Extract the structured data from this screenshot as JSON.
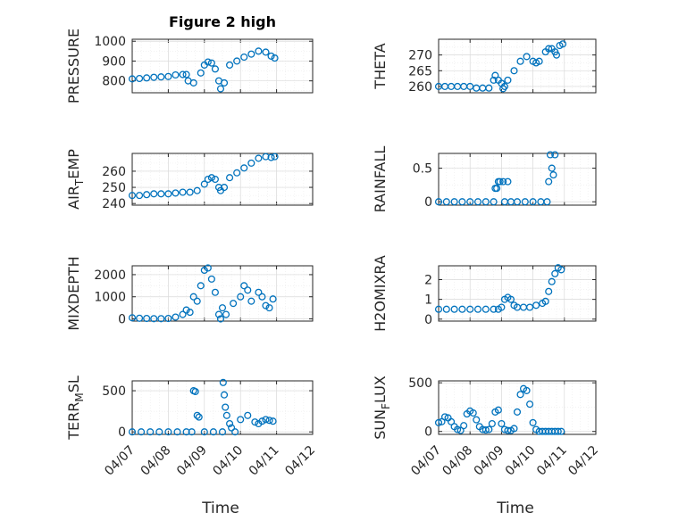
{
  "chart_data": [
    {
      "type": "scatter",
      "title": "Figure 2 high",
      "ylabel": "PRESSURE",
      "xlabel": "",
      "xlim": [
        "04/07",
        "04/12"
      ],
      "ylim": [
        740,
        1010
      ],
      "yticks": [
        800,
        900,
        1000
      ],
      "ytick_labels": [
        "800",
        "900",
        "1000"
      ],
      "xtick_labels": [],
      "grid": true,
      "series": [
        {
          "x": [
            0,
            0.2,
            0.4,
            0.6,
            0.8,
            1.0,
            1.2,
            1.4,
            1.5,
            1.55,
            1.7,
            1.9,
            2.0,
            2.1,
            2.2,
            2.3,
            2.4,
            2.45,
            2.55,
            2.7,
            2.9,
            3.1,
            3.3,
            3.5,
            3.7,
            3.85,
            3.95
          ],
          "y": [
            810,
            812,
            815,
            818,
            820,
            822,
            830,
            832,
            832,
            800,
            790,
            840,
            880,
            895,
            890,
            860,
            800,
            760,
            790,
            880,
            900,
            920,
            935,
            950,
            945,
            925,
            915
          ]
        }
      ]
    },
    {
      "type": "scatter",
      "title": "",
      "ylabel": "THETA",
      "xlabel": "",
      "xlim": [
        "04/07",
        "04/12"
      ],
      "ylim": [
        258,
        275
      ],
      "yticks": [
        260,
        265,
        270
      ],
      "ytick_labels": [
        "260",
        "265",
        "270"
      ],
      "xtick_labels": [],
      "grid": true,
      "series": [
        {
          "x": [
            0,
            0.2,
            0.4,
            0.6,
            0.8,
            1.0,
            1.2,
            1.4,
            1.6,
            1.75,
            1.8,
            1.9,
            2.0,
            2.05,
            2.1,
            2.2,
            2.4,
            2.6,
            2.8,
            3.0,
            3.1,
            3.2,
            3.4,
            3.5,
            3.6,
            3.7,
            3.75,
            3.85,
            3.95
          ],
          "y": [
            260,
            260,
            260,
            260,
            260,
            260,
            259.5,
            259.5,
            259.5,
            262,
            263.5,
            262,
            261,
            259.3,
            260,
            262,
            265,
            268,
            269.5,
            268,
            267.5,
            268,
            271,
            272,
            272,
            271,
            270,
            273,
            273.5
          ]
        }
      ]
    },
    {
      "type": "scatter",
      "title": "",
      "ylabel": "AIR_TEMP",
      "xlabel": "",
      "xlim": [
        "04/07",
        "04/12"
      ],
      "ylim": [
        239,
        271
      ],
      "yticks": [
        240,
        250,
        260
      ],
      "ytick_labels": [
        "240",
        "250",
        "260"
      ],
      "xtick_labels": [],
      "grid": true,
      "series": [
        {
          "x": [
            0,
            0.2,
            0.4,
            0.6,
            0.8,
            1.0,
            1.2,
            1.4,
            1.6,
            1.8,
            2.0,
            2.1,
            2.2,
            2.3,
            2.4,
            2.45,
            2.55,
            2.7,
            2.9,
            3.1,
            3.3,
            3.5,
            3.7,
            3.85,
            3.95
          ],
          "y": [
            245,
            245,
            245.5,
            246,
            246,
            246,
            246.5,
            247,
            247,
            248,
            252,
            255,
            256,
            255,
            250,
            248,
            250,
            256,
            259,
            262,
            265,
            268,
            269,
            268.5,
            269
          ]
        }
      ]
    },
    {
      "type": "scatter",
      "title": "",
      "ylabel": "RAINFALL",
      "xlabel": "",
      "xlim": [
        "04/07",
        "04/12"
      ],
      "ylim": [
        -0.05,
        0.72
      ],
      "yticks": [
        0,
        0.5
      ],
      "ytick_labels": [
        "0",
        "0.5"
      ],
      "xtick_labels": [],
      "grid": true,
      "series": [
        {
          "x": [
            0,
            0.25,
            0.5,
            0.75,
            1.0,
            1.25,
            1.5,
            1.75,
            1.8,
            1.85,
            1.9,
            1.95,
            2.05,
            2.1,
            2.2,
            2.3,
            2.5,
            2.75,
            3.0,
            3.25,
            3.45,
            3.5,
            3.55,
            3.6,
            3.65,
            3.7
          ],
          "y": [
            0,
            0,
            0,
            0,
            0,
            0,
            0,
            0,
            0.2,
            0.2,
            0.3,
            0.3,
            0.3,
            0,
            0.3,
            0,
            0,
            0,
            0,
            0,
            0,
            0.3,
            0.7,
            0.5,
            0.4,
            0.7
          ]
        }
      ]
    },
    {
      "type": "scatter",
      "title": "",
      "ylabel": "MIXDEPTH",
      "xlabel": "",
      "xlim": [
        "04/07",
        "04/12"
      ],
      "ylim": [
        -100,
        2400
      ],
      "yticks": [
        0,
        1000,
        2000
      ],
      "ytick_labels": [
        "0",
        "1000",
        "2000"
      ],
      "xtick_labels": [],
      "grid": true,
      "series": [
        {
          "x": [
            0,
            0.2,
            0.4,
            0.6,
            0.8,
            1.0,
            1.2,
            1.4,
            1.5,
            1.6,
            1.7,
            1.8,
            1.9,
            2.0,
            2.1,
            2.2,
            2.3,
            2.4,
            2.45,
            2.5,
            2.6,
            2.8,
            3.0,
            3.1,
            3.2,
            3.3,
            3.5,
            3.6,
            3.7,
            3.8,
            3.9
          ],
          "y": [
            50,
            30,
            20,
            10,
            10,
            20,
            80,
            200,
            400,
            300,
            1000,
            800,
            1500,
            2200,
            2300,
            1800,
            1200,
            200,
            0,
            500,
            200,
            700,
            1000,
            1500,
            1300,
            800,
            1200,
            1000,
            600,
            500,
            900
          ]
        }
      ]
    },
    {
      "type": "scatter",
      "title": "",
      "ylabel": "H2OMIXRA",
      "xlabel": "",
      "xlim": [
        "04/07",
        "04/12"
      ],
      "ylim": [
        -0.1,
        2.7
      ],
      "yticks": [
        0,
        1,
        2
      ],
      "ytick_labels": [
        "0",
        "1",
        "2"
      ],
      "xtick_labels": [],
      "grid": true,
      "series": [
        {
          "x": [
            0,
            0.25,
            0.5,
            0.75,
            1.0,
            1.25,
            1.5,
            1.75,
            1.9,
            2.0,
            2.1,
            2.2,
            2.3,
            2.4,
            2.5,
            2.7,
            2.9,
            3.1,
            3.3,
            3.4,
            3.5,
            3.6,
            3.7,
            3.8,
            3.9
          ],
          "y": [
            0.5,
            0.5,
            0.5,
            0.5,
            0.5,
            0.5,
            0.5,
            0.5,
            0.5,
            0.6,
            1.0,
            1.1,
            1.0,
            0.7,
            0.6,
            0.6,
            0.6,
            0.7,
            0.8,
            0.9,
            1.4,
            1.9,
            2.3,
            2.6,
            2.5
          ]
        }
      ]
    },
    {
      "type": "scatter",
      "title": "",
      "ylabel": "TERR_MSL",
      "xlabel": "",
      "xlim": [
        "04/07",
        "04/12"
      ],
      "ylim": [
        -30,
        620
      ],
      "yticks": [
        0,
        500
      ],
      "ytick_labels": [
        "0",
        "500"
      ],
      "xtick_labels": [
        "04/07",
        "04/08",
        "04/09",
        "04/10",
        "04/11",
        "04/12"
      ],
      "grid": true,
      "series": [
        {
          "x": [
            0,
            0.25,
            0.5,
            0.75,
            1.0,
            1.25,
            1.5,
            1.65,
            1.7,
            1.75,
            1.8,
            1.85,
            2.0,
            2.25,
            2.5,
            2.52,
            2.55,
            2.58,
            2.62,
            2.7,
            2.75,
            2.85,
            3.0,
            3.2,
            3.4,
            3.5,
            3.6,
            3.7,
            3.8,
            3.9
          ],
          "y": [
            0,
            0,
            0,
            0,
            0,
            0,
            0,
            0,
            500,
            490,
            200,
            180,
            0,
            0,
            0,
            600,
            450,
            300,
            200,
            100,
            50,
            0,
            150,
            200,
            120,
            100,
            130,
            150,
            140,
            130
          ]
        }
      ]
    },
    {
      "type": "scatter",
      "title": "",
      "ylabel": "SUN_FLUX",
      "xlabel": "",
      "xlim": [
        "04/07",
        "04/12"
      ],
      "ylim": [
        -30,
        520
      ],
      "yticks": [
        0,
        500
      ],
      "ytick_labels": [
        "0",
        "500"
      ],
      "xtick_labels": [
        "04/07",
        "04/08",
        "04/09",
        "04/10",
        "04/11",
        "04/12"
      ],
      "grid": true,
      "series": [
        {
          "x": [
            0,
            0.1,
            0.2,
            0.3,
            0.4,
            0.5,
            0.6,
            0.7,
            0.8,
            0.9,
            1.0,
            1.1,
            1.2,
            1.3,
            1.4,
            1.5,
            1.6,
            1.7,
            1.8,
            1.9,
            2.0,
            2.1,
            2.2,
            2.3,
            2.4,
            2.5,
            2.6,
            2.7,
            2.8,
            2.9,
            3.0,
            3.1,
            3.2,
            3.3,
            3.4,
            3.5,
            3.6,
            3.7,
            3.8,
            3.9
          ],
          "y": [
            90,
            100,
            150,
            140,
            100,
            50,
            20,
            10,
            60,
            180,
            210,
            190,
            120,
            50,
            20,
            15,
            20,
            80,
            200,
            220,
            80,
            20,
            10,
            10,
            30,
            200,
            380,
            440,
            420,
            280,
            90,
            20,
            0,
            0,
            0,
            0,
            0,
            0,
            0,
            0
          ]
        }
      ]
    }
  ],
  "xlabel": "Time",
  "colors": {
    "marker": "#0072bd",
    "axes": "#262626",
    "grid": "#d9d9d9"
  }
}
